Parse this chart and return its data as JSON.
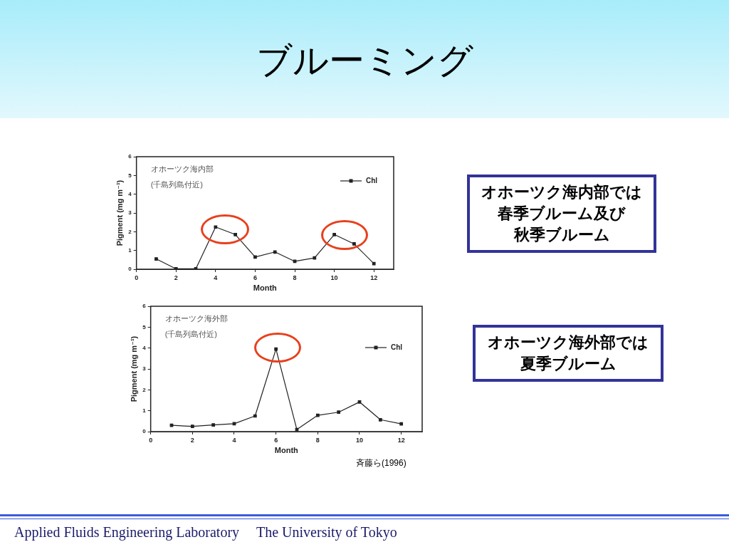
{
  "chart_data": [
    {
      "type": "line",
      "title": "ブルーミング",
      "xlabel": "Month",
      "ylabel": "Pigment (mg m⁻¹)",
      "x": [
        1,
        2,
        3,
        4,
        5,
        6,
        7,
        8,
        9,
        10,
        11,
        12
      ],
      "series": [
        {
          "name": "Chl",
          "color": "#222222",
          "values": [
            0.55,
            0.02,
            0.02,
            2.25,
            1.85,
            0.65,
            0.92,
            0.42,
            0.6,
            1.85,
            1.35,
            0.3
          ]
        }
      ],
      "xlim": [
        0,
        13
      ],
      "xticks": [
        0,
        2,
        4,
        6,
        8,
        10,
        12
      ],
      "ylim": [
        0,
        6
      ],
      "yticks": [
        0,
        1,
        2,
        3,
        4,
        5,
        6
      ],
      "marker": "square",
      "line_style": "solid",
      "legend": "top right",
      "grid": false,
      "annotations": [
        "オホーツク海内部",
        "(千島列島付近)",
        "オホーツク海内部では",
        "春季ブルーム及び",
        "秋季ブルーム"
      ]
    },
    {
      "type": "line",
      "xlabel": "Month",
      "ylabel": "Pigment (mg m⁻¹)",
      "x": [
        1,
        2,
        3,
        4,
        5,
        6,
        7,
        8,
        9,
        10,
        11,
        12
      ],
      "series": [
        {
          "name": "Chl",
          "color": "#222222",
          "values": [
            0.3,
            0.25,
            0.32,
            0.38,
            0.75,
            3.95,
            0.1,
            0.78,
            0.93,
            1.42,
            0.57,
            0.37
          ]
        }
      ],
      "xlim": [
        0,
        13
      ],
      "xticks": [
        0,
        2,
        4,
        6,
        8,
        10,
        12
      ],
      "ylim": [
        0,
        6
      ],
      "yticks": [
        0,
        1,
        2,
        3,
        4,
        5,
        6
      ],
      "marker": "square",
      "line_style": "solid",
      "legend": "right",
      "grid": false,
      "annotations": [
        "オホーツク海外部",
        "(千島列島付近)",
        "オホーツク海外部では",
        "夏季ブルーム",
        "斉藤ら(1996)",
        "Applied Fluids Engineering Laboratory",
        "The University of Tokyo"
      ]
    }
  ]
}
